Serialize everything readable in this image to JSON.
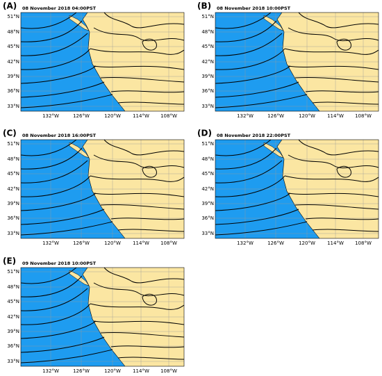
{
  "panels": [
    {
      "label": "(A)",
      "title": "08 November 2018 04:00PST"
    },
    {
      "label": "(B)",
      "title": "08 November 2018 10:00PST"
    },
    {
      "label": "(C)",
      "title": "08 November 2018 16:00PST"
    },
    {
      "label": "(D)",
      "title": "08 November 2018 22:00PST"
    },
    {
      "label": "(E)",
      "title": "09 November 2018 10:00PST"
    }
  ],
  "axes": {
    "lat_labels": [
      "51°N",
      "48°N",
      "45°N",
      "42°N",
      "39°N",
      "36°N",
      "33°N"
    ],
    "lon_labels": [
      "132°W",
      "126°W",
      "120°W",
      "114°W",
      "108°W"
    ]
  }
}
